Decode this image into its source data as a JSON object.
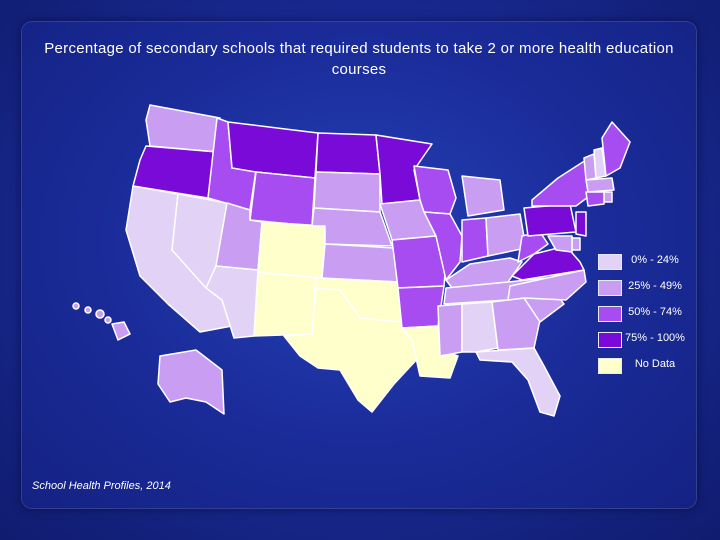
{
  "title": "Percentage of secondary schools that required students to take 2 or more health education courses",
  "source": "School Health Profiles, 2014",
  "colors": {
    "0-24": "#e2d2f6",
    "25-49": "#c99ef2",
    "50-74": "#a64cf0",
    "75-100": "#7a0ad8",
    "no_data": "#ffffcc"
  },
  "legend": [
    {
      "label": "0% - 24%",
      "category": "0-24"
    },
    {
      "label": "25% - 49%",
      "category": "25-49"
    },
    {
      "label": "50% - 74%",
      "category": "50-74"
    },
    {
      "label": "75% - 100%",
      "category": "75-100"
    },
    {
      "label": "No Data",
      "category": "no_data"
    }
  ],
  "states": {
    "WA": "25-49",
    "OR": "75-100",
    "CA": "0-24",
    "NV": "0-24",
    "ID": "50-74",
    "MT": "75-100",
    "WY": "50-74",
    "UT": "25-49",
    "AZ": "0-24",
    "CO": "no_data",
    "NM": "no_data",
    "ND": "75-100",
    "SD": "25-49",
    "NE": "25-49",
    "KS": "25-49",
    "OK": "no_data",
    "TX": "no_data",
    "MN": "75-100",
    "IA": "25-49",
    "MO": "50-74",
    "AR": "50-74",
    "LA": "no_data",
    "WI": "50-74",
    "IL": "50-74",
    "MI": "25-49",
    "IN": "50-74",
    "OH": "25-49",
    "KY": "25-49",
    "TN": "25-49",
    "MS": "25-49",
    "AL": "0-24",
    "GA": "25-49",
    "FL": "0-24",
    "SC": "25-49",
    "NC": "25-49",
    "VA": "75-100",
    "WV": "50-74",
    "PA": "75-100",
    "NY": "50-74",
    "VT": "25-49",
    "NH": "0-24",
    "ME": "50-74",
    "MA": "25-49",
    "RI": "25-49",
    "CT": "50-74",
    "NJ": "75-100",
    "DE": "25-49",
    "MD": "25-49",
    "AK": "25-49",
    "HI": "25-49"
  }
}
